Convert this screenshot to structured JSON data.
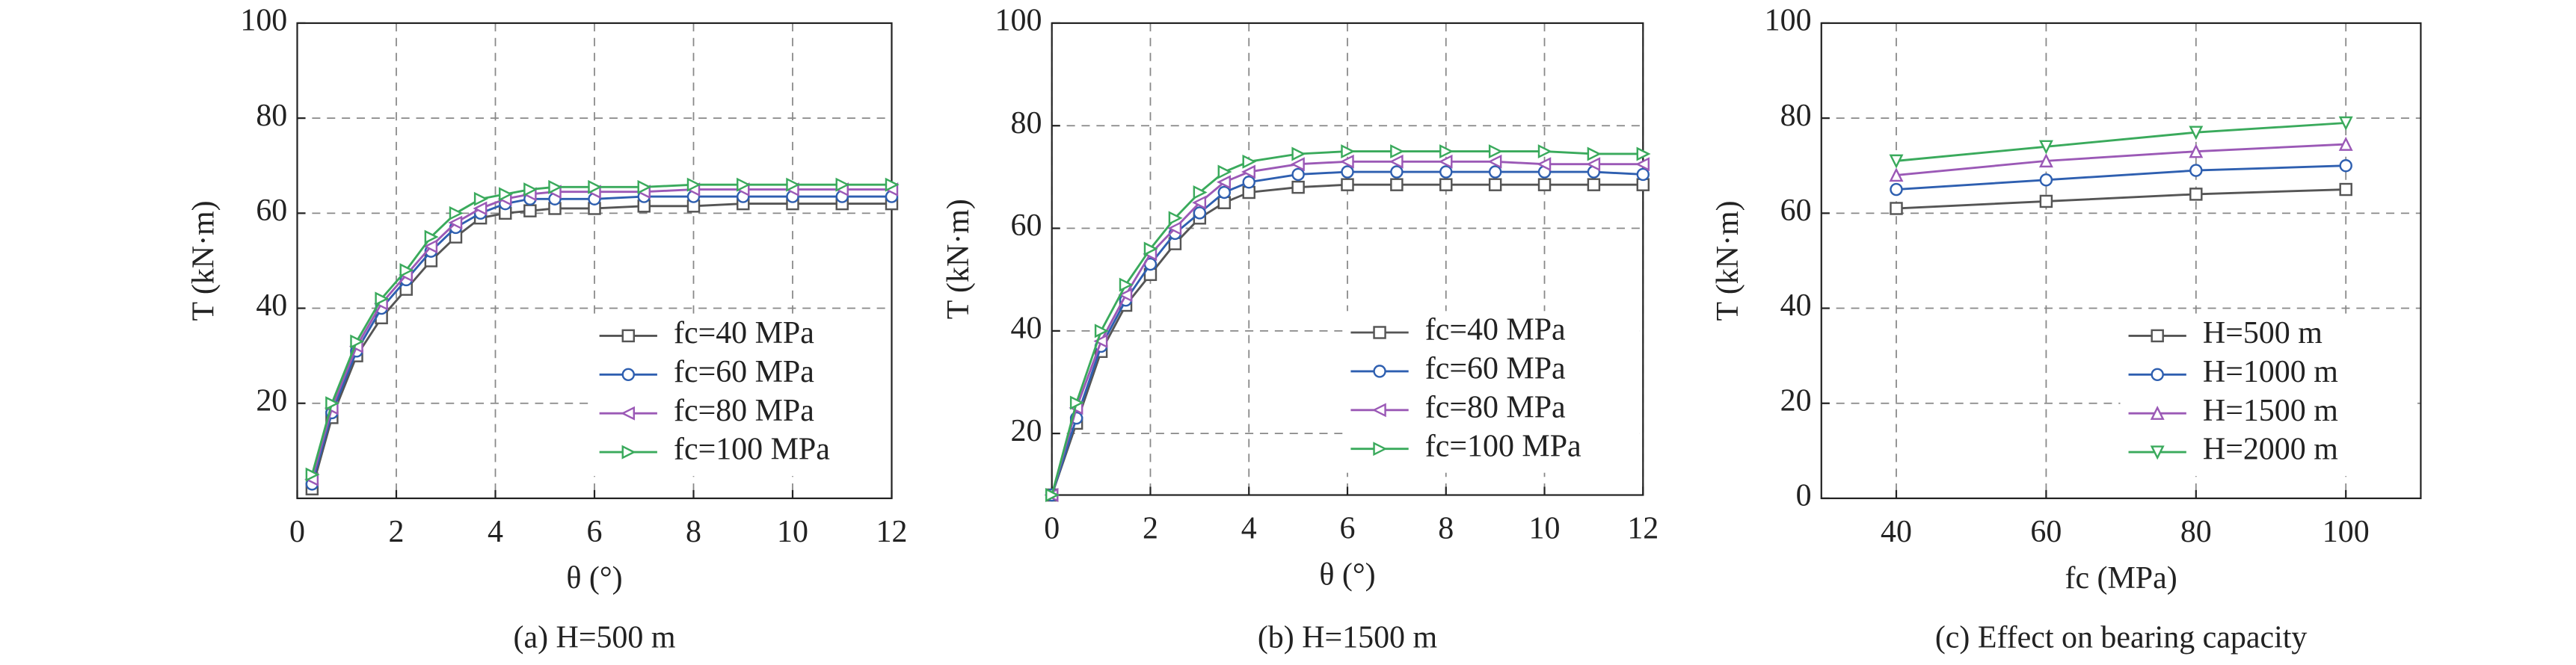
{
  "chart_data": [
    {
      "type": "line",
      "caption": "(a) H=500 m",
      "xlabel": "θ (°)",
      "ylabel": "T (kN·m)",
      "xlim": [
        0,
        12
      ],
      "ylim": [
        0,
        100
      ],
      "xticks": [
        0,
        2,
        4,
        6,
        8,
        10,
        12
      ],
      "yticks": [
        20,
        40,
        60,
        80,
        100
      ],
      "grid": true,
      "legend": "lower right",
      "x": [
        0.3,
        0.7,
        1.2,
        1.7,
        2.2,
        2.7,
        3.2,
        3.7,
        4.2,
        4.7,
        5.2,
        6,
        7,
        8,
        9,
        10,
        11,
        12
      ],
      "series": [
        {
          "name": "fc=40 MPa",
          "color": "#555555",
          "marker": "square",
          "values": [
            2,
            17,
            30,
            38,
            44,
            50,
            55,
            59,
            60,
            60.5,
            61,
            61,
            61.5,
            61.5,
            62,
            62,
            62,
            62
          ]
        },
        {
          "name": "fc=60 MPa",
          "color": "#2e5fb0",
          "marker": "circle",
          "values": [
            3,
            18,
            31,
            40,
            46,
            52,
            57,
            60,
            62,
            63,
            63,
            63,
            63.5,
            63.5,
            63.5,
            63.5,
            63.5,
            63.5
          ]
        },
        {
          "name": "fc=80 MPa",
          "color": "#9b59b6",
          "marker": "left",
          "values": [
            4,
            19,
            32,
            41,
            47,
            53,
            58,
            61,
            63,
            64,
            64.5,
            64.5,
            64.5,
            65,
            65,
            65,
            65,
            65
          ]
        },
        {
          "name": "fc=100 MPa",
          "color": "#3aaa5c",
          "marker": "right",
          "values": [
            5,
            20,
            33,
            42,
            48,
            55,
            60,
            63,
            64,
            65,
            65.5,
            65.5,
            65.5,
            66,
            66,
            66,
            66,
            66
          ]
        }
      ]
    },
    {
      "type": "line",
      "caption": "(b) H=1500 m",
      "xlabel": "θ (°)",
      "ylabel": "T (kN·m)",
      "xlim": [
        0,
        12
      ],
      "ylim": [
        8,
        100
      ],
      "xticks": [
        0,
        2,
        4,
        6,
        8,
        10,
        12
      ],
      "yticks": [
        20,
        40,
        60,
        80,
        100
      ],
      "grid": true,
      "legend": "lower right",
      "x": [
        0,
        0.5,
        1,
        1.5,
        2,
        2.5,
        3,
        3.5,
        4,
        5,
        6,
        7,
        8,
        9,
        10,
        11,
        12
      ],
      "series": [
        {
          "name": "fc=40 MPa",
          "color": "#555555",
          "marker": "square",
          "values": [
            8,
            22,
            36,
            45,
            51,
            57,
            62,
            65,
            67,
            68,
            68.5,
            68.5,
            68.5,
            68.5,
            68.5,
            68.5,
            68.5
          ]
        },
        {
          "name": "fc=60 MPa",
          "color": "#2e5fb0",
          "marker": "circle",
          "values": [
            8,
            23,
            37,
            46,
            53,
            59,
            63,
            67,
            69,
            70.5,
            71,
            71,
            71,
            71,
            71,
            71,
            70.5
          ]
        },
        {
          "name": "fc=80 MPa",
          "color": "#9b59b6",
          "marker": "left",
          "values": [
            8,
            25,
            38,
            47,
            55,
            60,
            65,
            69,
            71,
            72.5,
            73,
            73,
            73,
            73,
            72.5,
            72.5,
            72.5
          ]
        },
        {
          "name": "fc=100 MPa",
          "color": "#3aaa5c",
          "marker": "right",
          "values": [
            8,
            26,
            40,
            49,
            56,
            62,
            67,
            71,
            73,
            74.5,
            75,
            75,
            75,
            75,
            75,
            74.5,
            74.5
          ]
        }
      ]
    },
    {
      "type": "line",
      "caption": "(c) Effect on bearing capacity",
      "xlabel": "fc (MPa)",
      "ylabel": "T (kN·m)",
      "xlim": [
        30,
        110
      ],
      "ylim": [
        0,
        100
      ],
      "xticks": [
        40,
        60,
        80,
        100
      ],
      "yticks": [
        0,
        20,
        40,
        60,
        80,
        100
      ],
      "grid": true,
      "legend": "lower right",
      "x": [
        40,
        60,
        80,
        100
      ],
      "series": [
        {
          "name": "H=500 m",
          "color": "#555555",
          "marker": "square",
          "values": [
            61,
            62.5,
            64,
            65
          ]
        },
        {
          "name": "H=1000 m",
          "color": "#2e5fb0",
          "marker": "circle",
          "values": [
            65,
            67,
            69,
            70
          ]
        },
        {
          "name": "H=1500 m",
          "color": "#9b59b6",
          "marker": "up",
          "values": [
            68,
            71,
            73,
            74.5
          ]
        },
        {
          "name": "H=2000 m",
          "color": "#3aaa5c",
          "marker": "down",
          "values": [
            71,
            74,
            77,
            79
          ]
        }
      ]
    }
  ]
}
